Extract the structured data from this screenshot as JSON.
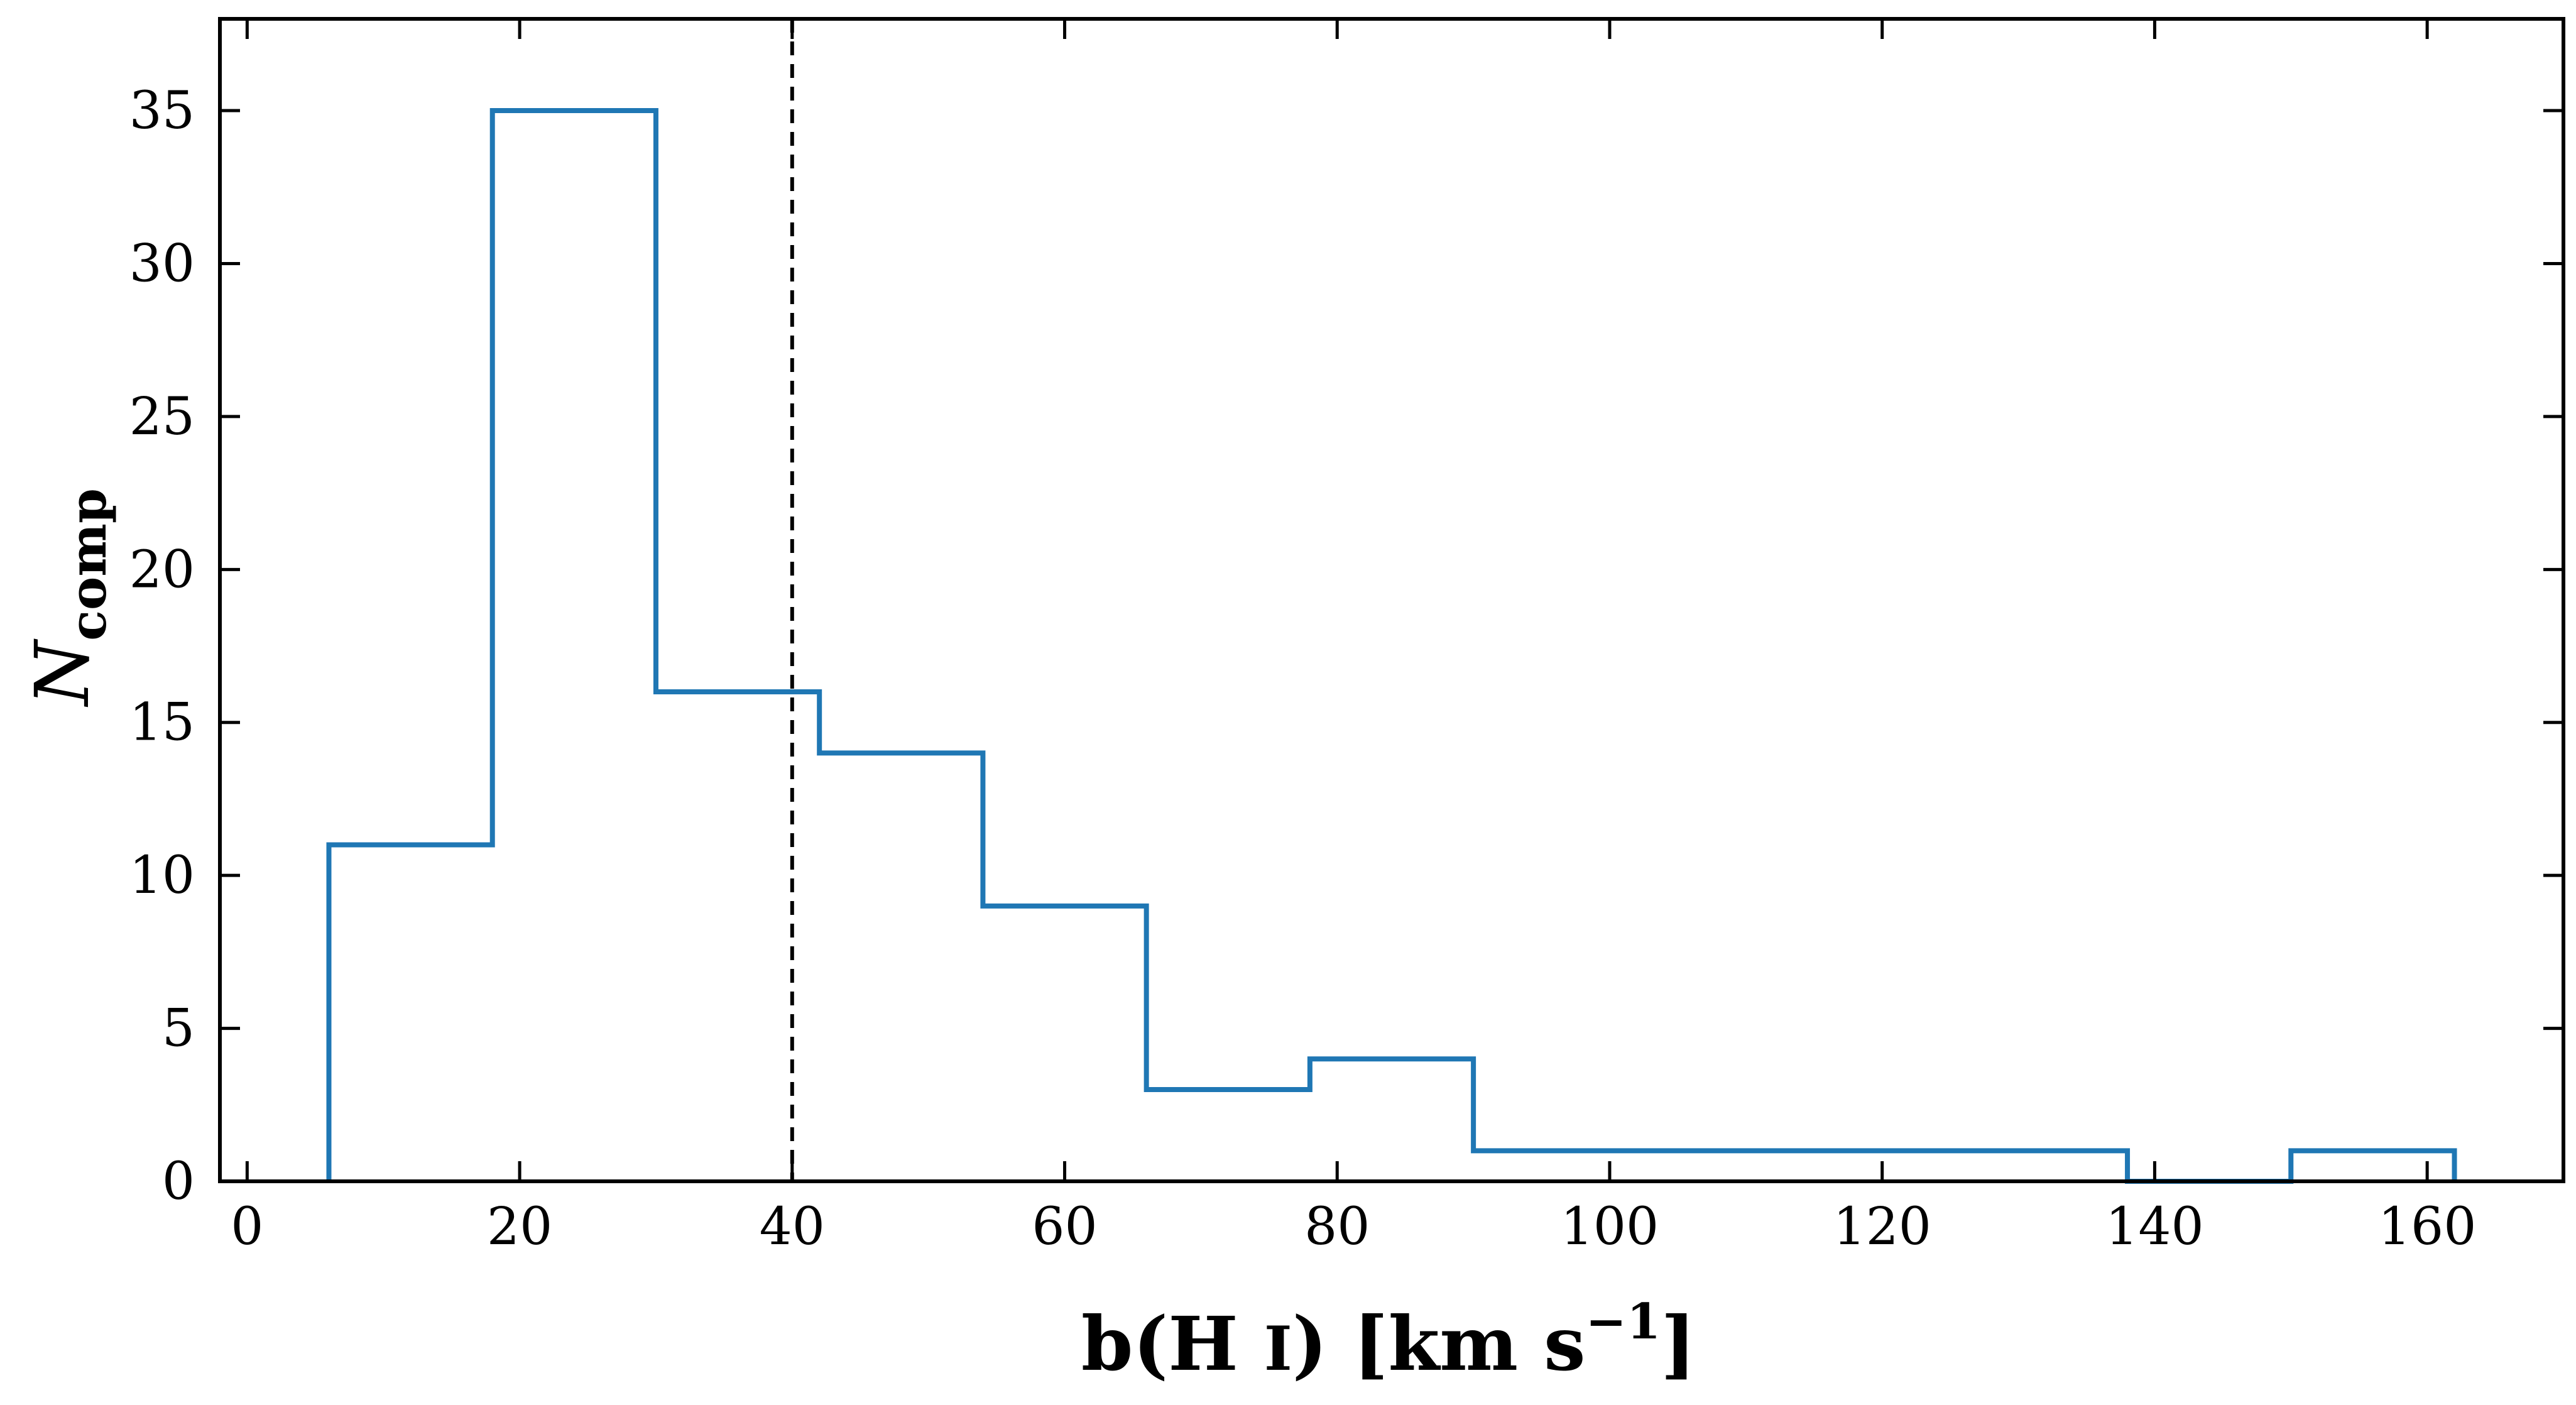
{
  "chart_data": {
    "type": "histogram",
    "xlabel_parts": {
      "main": "b(H ",
      "roman": "I",
      "close": ") [km s",
      "sup": "−1",
      "end": "]"
    },
    "ylabel_parts": {
      "main": "N",
      "sub": "comp"
    },
    "xlim": [
      -2,
      170
    ],
    "ylim": [
      0,
      38
    ],
    "xticks": [
      0,
      20,
      40,
      60,
      80,
      100,
      120,
      140,
      160
    ],
    "xtick_labels": [
      "0",
      "20",
      "40",
      "60",
      "80",
      "100",
      "120",
      "140",
      "160"
    ],
    "yticks": [
      0,
      5,
      10,
      15,
      20,
      25,
      30,
      35
    ],
    "ytick_labels": [
      "0",
      "5",
      "10",
      "15",
      "20",
      "25",
      "30",
      "35"
    ],
    "bin_edges": [
      6,
      18,
      30,
      42,
      54,
      66,
      78,
      90,
      102,
      114,
      126,
      138,
      150,
      162
    ],
    "counts": [
      11,
      35,
      16,
      14,
      9,
      3,
      4,
      1,
      1,
      1,
      1,
      0,
      1
    ],
    "reference_line_x": 40,
    "histtype": "step",
    "grid": false,
    "colors": {
      "series": "#1f77b4",
      "reference": "#000000"
    }
  }
}
